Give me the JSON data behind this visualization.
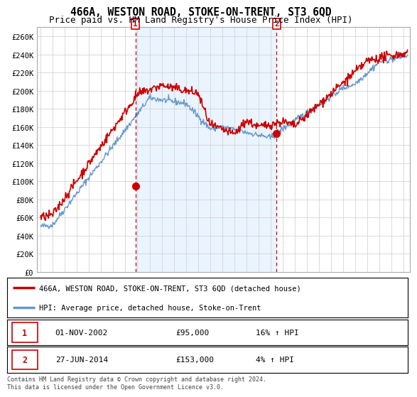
{
  "title": "466A, WESTON ROAD, STOKE-ON-TRENT, ST3 6QD",
  "subtitle": "Price paid vs. HM Land Registry's House Price Index (HPI)",
  "ylim": [
    0,
    270000
  ],
  "xlim_start": 1994.7,
  "xlim_end": 2025.5,
  "yticks": [
    0,
    20000,
    40000,
    60000,
    80000,
    100000,
    120000,
    140000,
    160000,
    180000,
    200000,
    220000,
    240000,
    260000
  ],
  "ytick_labels": [
    "£0",
    "£20K",
    "£40K",
    "£60K",
    "£80K",
    "£100K",
    "£120K",
    "£140K",
    "£160K",
    "£180K",
    "£200K",
    "£220K",
    "£240K",
    "£260K"
  ],
  "xticks": [
    1995,
    1996,
    1997,
    1998,
    1999,
    2000,
    2001,
    2002,
    2003,
    2004,
    2005,
    2006,
    2007,
    2008,
    2009,
    2010,
    2011,
    2012,
    2013,
    2014,
    2015,
    2016,
    2017,
    2018,
    2019,
    2020,
    2021,
    2022,
    2023,
    2024,
    2025
  ],
  "red_line_color": "#CC0000",
  "blue_line_color": "#6699CC",
  "blue_fill_color": "#DDEEFF",
  "marker1_x": 2002.83,
  "marker2_x": 2014.49,
  "marker1_y_red": 95000,
  "marker2_y_red": 153000,
  "legend_label1": "466A, WESTON ROAD, STOKE-ON-TRENT, ST3 6QD (detached house)",
  "legend_label2": "HPI: Average price, detached house, Stoke-on-Trent",
  "table_row1": [
    "1",
    "01-NOV-2002",
    "£95,000",
    "16% ↑ HPI"
  ],
  "table_row2": [
    "2",
    "27-JUN-2014",
    "£153,000",
    "4% ↑ HPI"
  ],
  "footnote": "Contains HM Land Registry data © Crown copyright and database right 2024.\nThis data is licensed under the Open Government Licence v3.0.",
  "background_color": "#FFFFFF",
  "grid_color": "#CCCCCC",
  "title_fontsize": 10.5,
  "subtitle_fontsize": 9
}
